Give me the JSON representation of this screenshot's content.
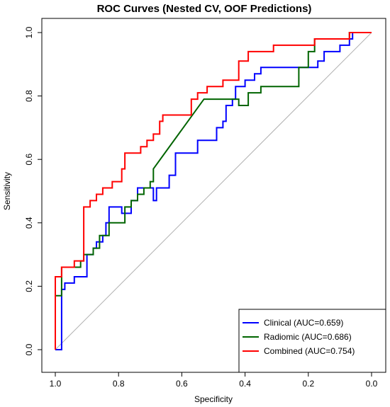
{
  "chart_data": {
    "type": "line",
    "title": "ROC Curves (Nested CV, OOF Predictions)",
    "xlabel": "Specificity",
    "ylabel": "Sensitivity",
    "xlim": [
      1.0,
      0.0
    ],
    "ylim": [
      0.0,
      1.0
    ],
    "x_reversed": true,
    "x_ticks": [
      "1.0",
      "0.8",
      "0.6",
      "0.4",
      "0.2",
      "0.0"
    ],
    "y_ticks": [
      "0.0",
      "0.2",
      "0.4",
      "0.6",
      "0.8",
      "1.0"
    ],
    "grid": false,
    "diagonal_reference": true,
    "legend": {
      "position": "bottom-right",
      "entries": [
        "Clinical (AUC=0.659)",
        "Radiomic (AUC=0.686)",
        "Combined (AUC=0.754)"
      ]
    },
    "series": [
      {
        "name": "Clinical (AUC=0.659)",
        "color": "#0000ff",
        "points": [
          [
            1.0,
            0.0
          ],
          [
            0.98,
            0.0
          ],
          [
            0.98,
            0.19
          ],
          [
            0.97,
            0.19
          ],
          [
            0.97,
            0.21
          ],
          [
            0.94,
            0.21
          ],
          [
            0.94,
            0.23
          ],
          [
            0.9,
            0.23
          ],
          [
            0.9,
            0.3
          ],
          [
            0.88,
            0.3
          ],
          [
            0.88,
            0.32
          ],
          [
            0.87,
            0.32
          ],
          [
            0.87,
            0.34
          ],
          [
            0.85,
            0.34
          ],
          [
            0.85,
            0.36
          ],
          [
            0.84,
            0.36
          ],
          [
            0.84,
            0.4
          ],
          [
            0.83,
            0.4
          ],
          [
            0.83,
            0.45
          ],
          [
            0.79,
            0.45
          ],
          [
            0.79,
            0.43
          ],
          [
            0.76,
            0.43
          ],
          [
            0.76,
            0.47
          ],
          [
            0.74,
            0.47
          ],
          [
            0.74,
            0.51
          ],
          [
            0.69,
            0.51
          ],
          [
            0.69,
            0.47
          ],
          [
            0.68,
            0.47
          ],
          [
            0.68,
            0.51
          ],
          [
            0.64,
            0.51
          ],
          [
            0.64,
            0.55
          ],
          [
            0.62,
            0.55
          ],
          [
            0.62,
            0.62
          ],
          [
            0.55,
            0.62
          ],
          [
            0.55,
            0.66
          ],
          [
            0.49,
            0.66
          ],
          [
            0.49,
            0.7
          ],
          [
            0.47,
            0.7
          ],
          [
            0.47,
            0.72
          ],
          [
            0.46,
            0.72
          ],
          [
            0.46,
            0.77
          ],
          [
            0.44,
            0.77
          ],
          [
            0.44,
            0.79
          ],
          [
            0.43,
            0.79
          ],
          [
            0.43,
            0.83
          ],
          [
            0.4,
            0.83
          ],
          [
            0.4,
            0.85
          ],
          [
            0.37,
            0.85
          ],
          [
            0.37,
            0.87
          ],
          [
            0.35,
            0.87
          ],
          [
            0.35,
            0.89
          ],
          [
            0.17,
            0.89
          ],
          [
            0.17,
            0.91
          ],
          [
            0.15,
            0.91
          ],
          [
            0.15,
            0.94
          ],
          [
            0.1,
            0.94
          ],
          [
            0.1,
            0.96
          ],
          [
            0.07,
            0.96
          ],
          [
            0.07,
            0.98
          ],
          [
            0.06,
            0.98
          ],
          [
            0.06,
            1.0
          ],
          [
            0.0,
            1.0
          ]
        ]
      },
      {
        "name": "Radiomic (AUC=0.686)",
        "color": "#006400",
        "points": [
          [
            1.0,
            0.0
          ],
          [
            1.0,
            0.17
          ],
          [
            0.98,
            0.17
          ],
          [
            0.98,
            0.26
          ],
          [
            0.92,
            0.26
          ],
          [
            0.92,
            0.28
          ],
          [
            0.91,
            0.28
          ],
          [
            0.91,
            0.3
          ],
          [
            0.88,
            0.3
          ],
          [
            0.88,
            0.32
          ],
          [
            0.86,
            0.32
          ],
          [
            0.86,
            0.36
          ],
          [
            0.83,
            0.36
          ],
          [
            0.83,
            0.4
          ],
          [
            0.78,
            0.4
          ],
          [
            0.78,
            0.45
          ],
          [
            0.76,
            0.45
          ],
          [
            0.76,
            0.47
          ],
          [
            0.74,
            0.47
          ],
          [
            0.74,
            0.49
          ],
          [
            0.72,
            0.49
          ],
          [
            0.72,
            0.51
          ],
          [
            0.7,
            0.51
          ],
          [
            0.7,
            0.53
          ],
          [
            0.69,
            0.53
          ],
          [
            0.69,
            0.57
          ],
          [
            0.53,
            0.79
          ],
          [
            0.42,
            0.79
          ],
          [
            0.42,
            0.77
          ],
          [
            0.39,
            0.77
          ],
          [
            0.39,
            0.81
          ],
          [
            0.35,
            0.81
          ],
          [
            0.35,
            0.83
          ],
          [
            0.23,
            0.83
          ],
          [
            0.23,
            0.89
          ],
          [
            0.2,
            0.89
          ],
          [
            0.2,
            0.94
          ],
          [
            0.18,
            0.94
          ],
          [
            0.18,
            0.98
          ],
          [
            0.07,
            0.98
          ],
          [
            0.07,
            1.0
          ],
          [
            0.0,
            1.0
          ]
        ]
      },
      {
        "name": "Combined (AUC=0.754)",
        "color": "#ff0000",
        "points": [
          [
            1.0,
            0.0
          ],
          [
            1.0,
            0.23
          ],
          [
            0.98,
            0.23
          ],
          [
            0.98,
            0.26
          ],
          [
            0.94,
            0.26
          ],
          [
            0.94,
            0.28
          ],
          [
            0.91,
            0.28
          ],
          [
            0.91,
            0.45
          ],
          [
            0.89,
            0.45
          ],
          [
            0.89,
            0.47
          ],
          [
            0.87,
            0.47
          ],
          [
            0.87,
            0.49
          ],
          [
            0.85,
            0.49
          ],
          [
            0.85,
            0.51
          ],
          [
            0.82,
            0.51
          ],
          [
            0.82,
            0.53
          ],
          [
            0.79,
            0.53
          ],
          [
            0.79,
            0.57
          ],
          [
            0.78,
            0.57
          ],
          [
            0.78,
            0.62
          ],
          [
            0.73,
            0.62
          ],
          [
            0.73,
            0.64
          ],
          [
            0.71,
            0.64
          ],
          [
            0.71,
            0.66
          ],
          [
            0.69,
            0.66
          ],
          [
            0.69,
            0.68
          ],
          [
            0.67,
            0.68
          ],
          [
            0.67,
            0.72
          ],
          [
            0.66,
            0.72
          ],
          [
            0.66,
            0.74
          ],
          [
            0.57,
            0.74
          ],
          [
            0.57,
            0.79
          ],
          [
            0.55,
            0.79
          ],
          [
            0.55,
            0.81
          ],
          [
            0.52,
            0.81
          ],
          [
            0.52,
            0.83
          ],
          [
            0.47,
            0.83
          ],
          [
            0.47,
            0.85
          ],
          [
            0.42,
            0.85
          ],
          [
            0.42,
            0.91
          ],
          [
            0.39,
            0.91
          ],
          [
            0.39,
            0.94
          ],
          [
            0.31,
            0.94
          ],
          [
            0.31,
            0.96
          ],
          [
            0.18,
            0.96
          ],
          [
            0.18,
            0.98
          ],
          [
            0.07,
            0.98
          ],
          [
            0.07,
            1.0
          ],
          [
            0.0,
            1.0
          ]
        ]
      }
    ]
  }
}
